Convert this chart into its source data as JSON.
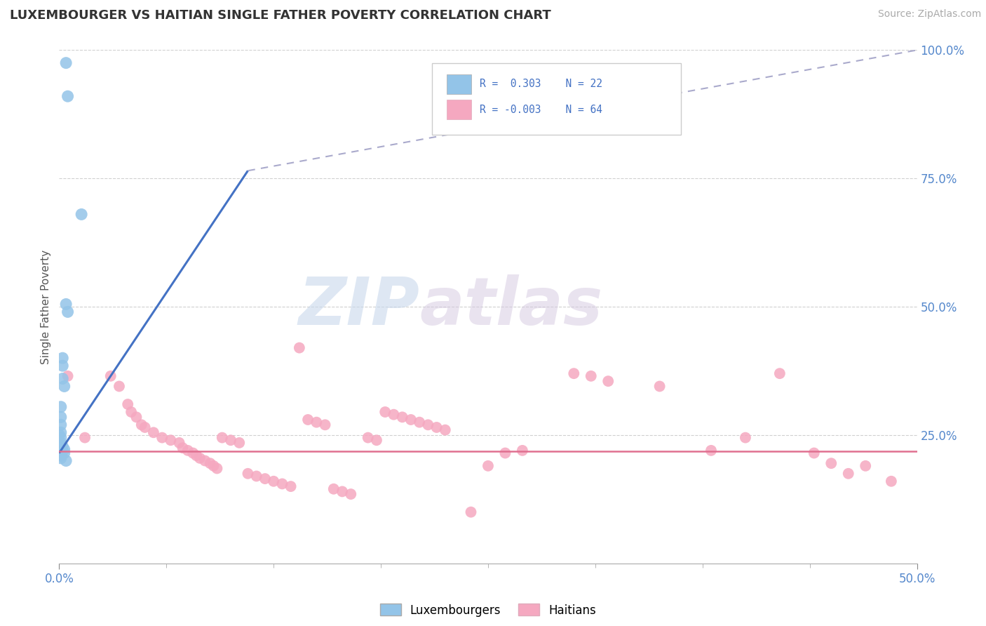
{
  "title": "LUXEMBOURGER VS HAITIAN SINGLE FATHER POVERTY CORRELATION CHART",
  "source_text": "Source: ZipAtlas.com",
  "ylabel": "Single Father Poverty",
  "xlim": [
    0.0,
    0.5
  ],
  "ylim": [
    0.0,
    1.0
  ],
  "xtick_major_labels": [
    "0.0%",
    "50.0%"
  ],
  "xtick_major_vals": [
    0.0,
    0.5
  ],
  "xtick_minor_vals": [
    0.0625,
    0.125,
    0.1875,
    0.25,
    0.3125,
    0.375,
    0.4375
  ],
  "ytick_labels": [
    "100.0%",
    "75.0%",
    "50.0%",
    "25.0%"
  ],
  "ytick_vals": [
    1.0,
    0.75,
    0.5,
    0.25
  ],
  "background_color": "#ffffff",
  "grid_color": "#d0d0d0",
  "watermark_zip": "ZIP",
  "watermark_atlas": "atlas",
  "legend_r1": "R =  0.303",
  "legend_n1": "N = 22",
  "legend_r2": "R = -0.003",
  "legend_n2": "N = 64",
  "lux_color": "#93c4e8",
  "hai_color": "#f5a8c0",
  "lux_line_color": "#4472c4",
  "hai_line_color": "#e07090",
  "lux_scatter": [
    [
      0.004,
      0.975
    ],
    [
      0.005,
      0.91
    ],
    [
      0.013,
      0.68
    ],
    [
      0.004,
      0.505
    ],
    [
      0.005,
      0.49
    ],
    [
      0.002,
      0.4
    ],
    [
      0.002,
      0.385
    ],
    [
      0.002,
      0.36
    ],
    [
      0.003,
      0.345
    ],
    [
      0.001,
      0.305
    ],
    [
      0.001,
      0.285
    ],
    [
      0.001,
      0.27
    ],
    [
      0.001,
      0.255
    ],
    [
      0.0,
      0.25
    ],
    [
      0.001,
      0.245
    ],
    [
      0.001,
      0.235
    ],
    [
      0.002,
      0.228
    ],
    [
      0.003,
      0.222
    ],
    [
      0.003,
      0.215
    ],
    [
      0.001,
      0.21
    ],
    [
      0.001,
      0.205
    ],
    [
      0.004,
      0.2
    ]
  ],
  "hai_scatter": [
    [
      0.005,
      0.365
    ],
    [
      0.015,
      0.245
    ],
    [
      0.03,
      0.365
    ],
    [
      0.035,
      0.345
    ],
    [
      0.04,
      0.31
    ],
    [
      0.042,
      0.295
    ],
    [
      0.045,
      0.285
    ],
    [
      0.048,
      0.27
    ],
    [
      0.05,
      0.265
    ],
    [
      0.055,
      0.255
    ],
    [
      0.06,
      0.245
    ],
    [
      0.065,
      0.24
    ],
    [
      0.07,
      0.235
    ],
    [
      0.072,
      0.225
    ],
    [
      0.075,
      0.22
    ],
    [
      0.078,
      0.215
    ],
    [
      0.08,
      0.21
    ],
    [
      0.082,
      0.205
    ],
    [
      0.085,
      0.2
    ],
    [
      0.088,
      0.195
    ],
    [
      0.09,
      0.19
    ],
    [
      0.092,
      0.185
    ],
    [
      0.095,
      0.245
    ],
    [
      0.1,
      0.24
    ],
    [
      0.105,
      0.235
    ],
    [
      0.11,
      0.175
    ],
    [
      0.115,
      0.17
    ],
    [
      0.12,
      0.165
    ],
    [
      0.125,
      0.16
    ],
    [
      0.13,
      0.155
    ],
    [
      0.135,
      0.15
    ],
    [
      0.14,
      0.42
    ],
    [
      0.145,
      0.28
    ],
    [
      0.15,
      0.275
    ],
    [
      0.155,
      0.27
    ],
    [
      0.16,
      0.145
    ],
    [
      0.165,
      0.14
    ],
    [
      0.17,
      0.135
    ],
    [
      0.18,
      0.245
    ],
    [
      0.185,
      0.24
    ],
    [
      0.19,
      0.295
    ],
    [
      0.195,
      0.29
    ],
    [
      0.2,
      0.285
    ],
    [
      0.205,
      0.28
    ],
    [
      0.21,
      0.275
    ],
    [
      0.215,
      0.27
    ],
    [
      0.22,
      0.265
    ],
    [
      0.225,
      0.26
    ],
    [
      0.24,
      0.1
    ],
    [
      0.25,
      0.19
    ],
    [
      0.26,
      0.215
    ],
    [
      0.27,
      0.22
    ],
    [
      0.3,
      0.37
    ],
    [
      0.31,
      0.365
    ],
    [
      0.32,
      0.355
    ],
    [
      0.35,
      0.345
    ],
    [
      0.38,
      0.22
    ],
    [
      0.4,
      0.245
    ],
    [
      0.42,
      0.37
    ],
    [
      0.44,
      0.215
    ],
    [
      0.45,
      0.195
    ],
    [
      0.46,
      0.175
    ],
    [
      0.47,
      0.19
    ],
    [
      0.485,
      0.16
    ]
  ],
  "lux_trendline_solid": [
    [
      0.0,
      0.215
    ],
    [
      0.11,
      0.765
    ]
  ],
  "lux_trendline_dashed": [
    [
      0.11,
      0.765
    ],
    [
      0.5,
      1.0
    ]
  ],
  "hai_trendline": [
    [
      0.0,
      0.218
    ],
    [
      0.5,
      0.218
    ]
  ]
}
